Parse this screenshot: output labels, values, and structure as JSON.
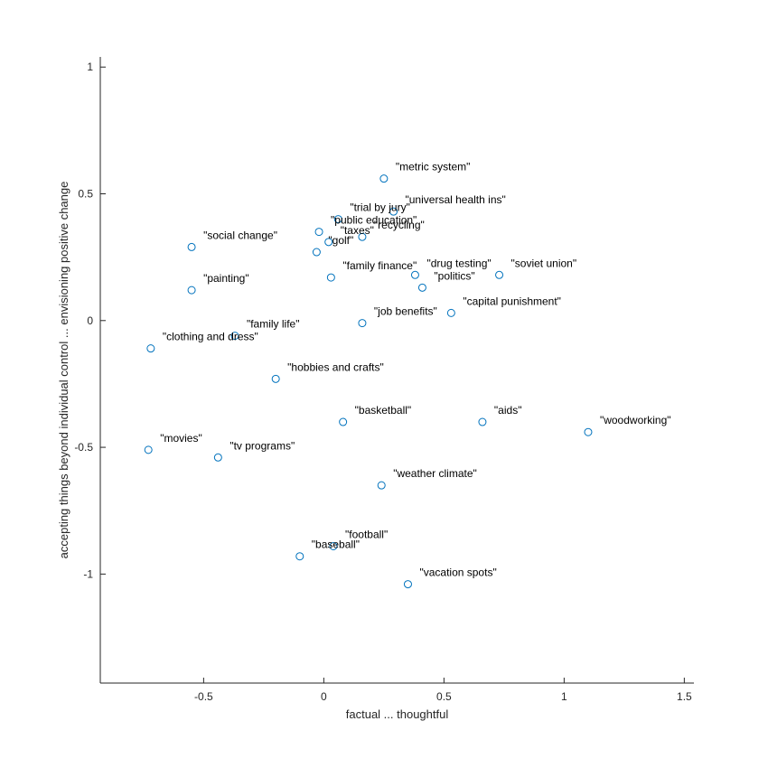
{
  "chart_data": {
    "type": "scatter",
    "title": "",
    "xlabel": "factual ... thoughtful",
    "ylabel": "accepting things beyond individual control ... envisioning positive change",
    "xlim": [
      -0.93,
      1.54
    ],
    "ylim": [
      -1.43,
      1.04
    ],
    "xticks": [
      -0.5,
      0,
      0.5,
      1,
      1.5
    ],
    "yticks": [
      1,
      0.5,
      0,
      -0.5,
      -1
    ],
    "xtick_labels": [
      "-0.5",
      "0",
      "0.5",
      "1",
      "1.5"
    ],
    "ytick_labels": [
      "1",
      "0.5",
      "0",
      "-0.5",
      "-1"
    ],
    "grid": false,
    "marker_color": "#0072BD",
    "points": [
      {
        "label": "\"metric system\"",
        "x": 0.25,
        "y": 0.56
      },
      {
        "label": "\"universal health ins\"",
        "x": 0.29,
        "y": 0.43
      },
      {
        "label": "\"trial by jury\"",
        "x": 0.06,
        "y": 0.4
      },
      {
        "label": "\"public education\"",
        "x": -0.02,
        "y": 0.35
      },
      {
        "label": "\"recycling\"",
        "x": 0.16,
        "y": 0.33
      },
      {
        "label": "\"taxes\"",
        "x": 0.02,
        "y": 0.31
      },
      {
        "label": "\"golf\"",
        "x": -0.03,
        "y": 0.27
      },
      {
        "label": "\"social change\"",
        "x": -0.55,
        "y": 0.29
      },
      {
        "label": "\"family finance\"",
        "x": 0.03,
        "y": 0.17
      },
      {
        "label": "\"drug testing\"",
        "x": 0.38,
        "y": 0.18
      },
      {
        "label": "\"soviet union\"",
        "x": 0.73,
        "y": 0.18
      },
      {
        "label": "\"politics\"",
        "x": 0.41,
        "y": 0.13
      },
      {
        "label": "\"painting\"",
        "x": -0.55,
        "y": 0.12
      },
      {
        "label": "\"capital punishment\"",
        "x": 0.53,
        "y": 0.03
      },
      {
        "label": "\"job benefits\"",
        "x": 0.16,
        "y": -0.01
      },
      {
        "label": "\"family life\"",
        "x": -0.37,
        "y": -0.06
      },
      {
        "label": "\"clothing and dress\"",
        "x": -0.72,
        "y": -0.11
      },
      {
        "label": "\"hobbies and crafts\"",
        "x": -0.2,
        "y": -0.23
      },
      {
        "label": "\"basketball\"",
        "x": 0.08,
        "y": -0.4
      },
      {
        "label": "\"aids\"",
        "x": 0.66,
        "y": -0.4
      },
      {
        "label": "\"woodworking\"",
        "x": 1.1,
        "y": -0.44
      },
      {
        "label": "\"movies\"",
        "x": -0.73,
        "y": -0.51
      },
      {
        "label": "\"tv programs\"",
        "x": -0.44,
        "y": -0.54
      },
      {
        "label": "\"weather climate\"",
        "x": 0.24,
        "y": -0.65
      },
      {
        "label": "\"football\"",
        "x": 0.04,
        "y": -0.89
      },
      {
        "label": "\"baseball\"",
        "x": -0.1,
        "y": -0.93
      },
      {
        "label": "\"vacation spots\"",
        "x": 0.35,
        "y": -1.04
      }
    ]
  }
}
